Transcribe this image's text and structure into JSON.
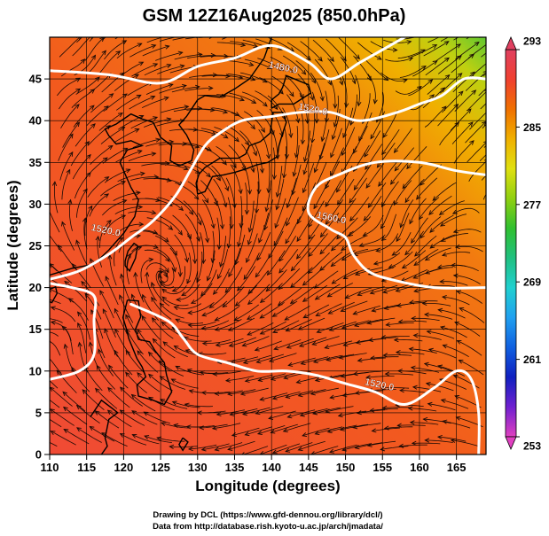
{
  "chart_data": {
    "type": "heatmap",
    "title": "GSM 12Z16Aug2025 (850.0hPa)",
    "xlabel": "Longitude (degrees)",
    "ylabel": "Latitude  (degrees)",
    "xlim": [
      110,
      169
    ],
    "ylim": [
      0,
      50
    ],
    "x_ticks": [
      110,
      115,
      120,
      125,
      130,
      135,
      140,
      145,
      150,
      155,
      160,
      165
    ],
    "y_ticks": [
      0,
      5,
      10,
      15,
      20,
      25,
      30,
      35,
      40,
      45
    ],
    "x_tick_labels": [
      "110",
      "115",
      "120",
      "125",
      "130",
      "135",
      "140",
      "145",
      "150",
      "155",
      "160",
      "165"
    ],
    "y_tick_labels": [
      "0",
      "5",
      "10",
      "15",
      "20",
      "25",
      "30",
      "35",
      "40",
      "45"
    ],
    "colorbar": {
      "min": 253,
      "max": 293,
      "ticks": [
        253,
        261,
        269,
        277,
        285,
        293
      ],
      "tick_labels": [
        "253",
        "261",
        "269",
        "277",
        "285",
        "293"
      ],
      "colors": [
        "#e040c0",
        "#7020d0",
        "#1020c0",
        "#1060e0",
        "#20a0f0",
        "#20d0d0",
        "#20c080",
        "#30c030",
        "#90d010",
        "#e0e010",
        "#f0b000",
        "#f07000",
        "#f04030",
        "#e04060"
      ]
    },
    "contours": [
      {
        "level": "1480.0",
        "points": [
          [
            110,
            46
          ],
          [
            118,
            45.5
          ],
          [
            125,
            44.5
          ],
          [
            130,
            46.5
          ],
          [
            135,
            47.5
          ],
          [
            140,
            49
          ],
          [
            145,
            47
          ],
          [
            148,
            45
          ],
          [
            152,
            47
          ],
          [
            156,
            49
          ],
          [
            158,
            50
          ]
        ]
      },
      {
        "level": "1520.0",
        "points": [
          [
            110,
            21
          ],
          [
            114,
            22
          ],
          [
            118,
            24
          ],
          [
            121,
            26
          ],
          [
            124,
            28
          ],
          [
            127,
            31
          ],
          [
            129,
            34
          ],
          [
            131,
            37
          ],
          [
            133,
            38.5
          ],
          [
            136,
            40
          ],
          [
            140,
            40.5
          ],
          [
            144,
            41
          ],
          [
            148,
            41
          ],
          [
            152,
            40
          ],
          [
            157,
            41
          ],
          [
            160,
            42
          ],
          [
            163,
            43
          ],
          [
            166,
            45
          ],
          [
            169,
            45
          ]
        ]
      },
      {
        "level": "1560.0",
        "points": [
          [
            169,
            33.5
          ],
          [
            165,
            34
          ],
          [
            160,
            35
          ],
          [
            154,
            35
          ],
          [
            149,
            33.5
          ],
          [
            146,
            32
          ],
          [
            145,
            29
          ],
          [
            148,
            27
          ],
          [
            150,
            26
          ],
          [
            151,
            24
          ],
          [
            153,
            22
          ],
          [
            156,
            21
          ],
          [
            162,
            20
          ],
          [
            169,
            20
          ]
        ]
      },
      {
        "level": "1520.0",
        "points": [
          [
            110,
            9
          ],
          [
            114,
            10
          ],
          [
            116,
            12
          ],
          [
            116,
            16
          ],
          [
            116,
            19
          ],
          [
            113,
            20
          ],
          [
            110,
            20.5
          ]
        ]
      },
      {
        "level": "1520.0",
        "points": [
          [
            121,
            18
          ],
          [
            126,
            16
          ],
          [
            128,
            14
          ],
          [
            130,
            12
          ],
          [
            134,
            11
          ],
          [
            138,
            10
          ],
          [
            142,
            10
          ],
          [
            146,
            9.5
          ],
          [
            150,
            8.5
          ],
          [
            154,
            7.5
          ],
          [
            158,
            6
          ],
          [
            162,
            8
          ],
          [
            165,
            10
          ],
          [
            167,
            9
          ],
          [
            168,
            5
          ],
          [
            168,
            0
          ]
        ]
      }
    ],
    "contour_labels": [
      {
        "text": "1480.0",
        "x": 141.5,
        "y": 46
      },
      {
        "text": "1520.0",
        "x": 145.5,
        "y": 41
      },
      {
        "text": "1560.0",
        "x": 148,
        "y": 28
      },
      {
        "text": "1520.0",
        "x": 117.5,
        "y": 26.5
      },
      {
        "text": "1520.0",
        "x": 154.5,
        "y": 8
      }
    ],
    "gridlines": true
  },
  "footer": {
    "line1": "Drawing by DCL (https://www.gfd-dennou.org/library/dcl/)",
    "line2": "Data from http://database.rish.kyoto-u.ac.jp/arch/jmadata/"
  }
}
